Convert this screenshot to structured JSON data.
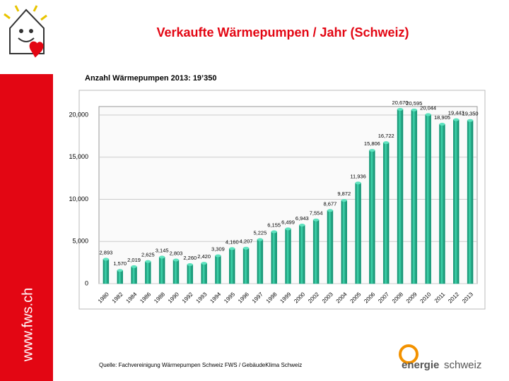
{
  "chart_data": {
    "type": "bar",
    "title": "Verkaufte Wärmepumpen / Jahr (Schweiz)",
    "subtitle": "Anzahl Wärmepumpen 2013: 19’350",
    "source": "Quelle: Fachvereinigung Wärmepumpen Schweiz FWS / GebäudeKlima Schweiz",
    "categories": [
      "1980",
      "1982",
      "1984",
      "1986",
      "1988",
      "1990",
      "1992",
      "1993",
      "1994",
      "1995",
      "1996",
      "1997",
      "1998",
      "1999",
      "2000",
      "2002",
      "2003",
      "2004",
      "2005",
      "2006",
      "2007",
      "2008",
      "2009",
      "2010",
      "2011",
      "2012",
      "2013"
    ],
    "values": [
      2893,
      1570,
      2019,
      2625,
      3145,
      2803,
      2260,
      2420,
      3309,
      4160,
      4207,
      5225,
      6155,
      6499,
      6943,
      7554,
      8677,
      9872,
      11936,
      15806,
      16722,
      20670,
      20595,
      20044,
      18905,
      19443,
      19350
    ],
    "value_labels": [
      "2,893",
      "1,570",
      "2,019",
      "2,625",
      "3,145",
      "2,803",
      "2,260",
      "2,420",
      "3,309",
      "4,160",
      "4,207",
      "5,225",
      "6,155",
      "6,499",
      "6,943",
      "7,554",
      "8,677",
      "9,872",
      "11,936",
      "15,806",
      "16,722",
      "20,670",
      "20,595",
      "20,044",
      "18,905",
      "19,443",
      "19,350"
    ],
    "color": "#1fb58f",
    "ylim": [
      0,
      21000
    ],
    "yticks": [
      0,
      {
        "value": 5000,
        "label": "5,000"
      },
      {
        "value": 10000,
        "label": "10,000"
      },
      {
        "value": 15000,
        "label": "15,000"
      },
      {
        "value": 20000,
        "label": "20,000"
      }
    ],
    "grid": true
  },
  "sidebar": "www.fws.ch",
  "logo": [
    "energie",
    "schweiz"
  ]
}
